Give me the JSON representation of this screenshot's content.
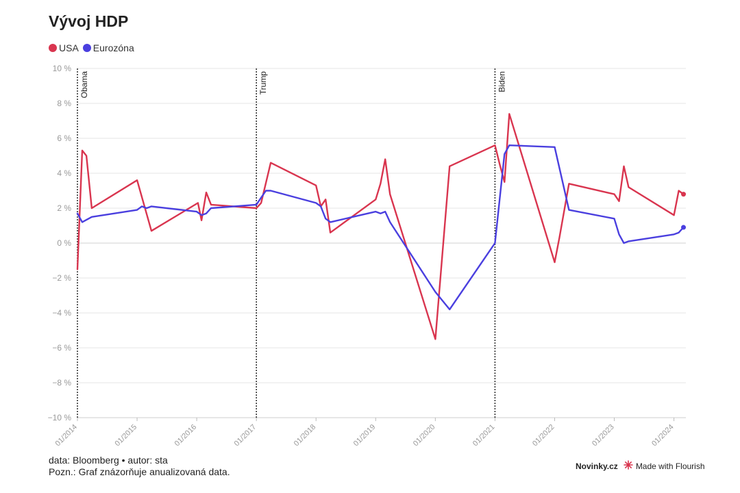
{
  "header": {
    "title": "Vývoj HDP"
  },
  "legend": [
    {
      "label": "USA",
      "color": "#d9354f"
    },
    {
      "label": "Eurozóna",
      "color": "#4a3fdf"
    }
  ],
  "footer": {
    "source_line": "data: Bloomberg • autor: sta",
    "note_line": "Pozn.: Graf znázorňuje anualizovaná data."
  },
  "brand": {
    "publisher": "Novinky.cz",
    "made_with": "Made with Flourish"
  },
  "chart_data": {
    "type": "line",
    "title": "Vývoj HDP",
    "ylim": [
      -10,
      10
    ],
    "xlim": [
      2014.0,
      2024.2
    ],
    "y_ticks": [
      -10,
      -8,
      -6,
      -4,
      -2,
      0,
      2,
      4,
      6,
      8,
      10
    ],
    "y_tick_labels": [
      "−10 %",
      "−8 %",
      "−6 %",
      "−4 %",
      "−2 %",
      "0 %",
      "2 %",
      "4 %",
      "6 %",
      "8 %",
      "10 %"
    ],
    "x_ticks": [
      2014,
      2015,
      2016,
      2017,
      2018,
      2019,
      2020,
      2021,
      2022,
      2023,
      2024
    ],
    "x_tick_labels": [
      "01/2014",
      "01/2015",
      "01/2016",
      "01/2017",
      "01/2018",
      "01/2019",
      "01/2020",
      "01/2021",
      "01/2022",
      "01/2023",
      "01/2024"
    ],
    "grid": true,
    "legend_position": "top-left",
    "annotations": [
      {
        "x": 2014.0,
        "label": "Obama"
      },
      {
        "x": 2017.0,
        "label": "Trump"
      },
      {
        "x": 2021.0,
        "label": "Biden"
      }
    ],
    "series": [
      {
        "name": "USA",
        "color": "#d9354f",
        "x": [
          2014.0,
          2014.08,
          2014.15,
          2014.24,
          2015.0,
          2015.24,
          2016.02,
          2016.08,
          2016.16,
          2016.24,
          2017.0,
          2017.08,
          2017.24,
          2018.0,
          2018.08,
          2018.16,
          2018.24,
          2019.0,
          2019.08,
          2019.16,
          2019.24,
          2020.0,
          2020.24,
          2021.0,
          2021.08,
          2021.16,
          2021.24,
          2022.0,
          2022.08,
          2022.24,
          2023.0,
          2023.08,
          2023.16,
          2023.24,
          2024.0,
          2024.08,
          2024.16
        ],
        "y": [
          -1.5,
          5.3,
          5.0,
          2.0,
          3.6,
          0.7,
          2.3,
          1.3,
          2.9,
          2.2,
          2.0,
          2.3,
          4.6,
          3.3,
          2.1,
          2.5,
          0.6,
          2.5,
          3.4,
          4.8,
          2.8,
          -5.5,
          4.4,
          5.6,
          4.5,
          3.5,
          7.4,
          -1.1,
          0.3,
          3.4,
          2.8,
          2.4,
          4.4,
          3.2,
          1.6,
          3.0,
          2.8
        ]
      },
      {
        "name": "Eurozóna",
        "color": "#4a3fdf",
        "x": [
          2014.0,
          2014.08,
          2014.24,
          2015.0,
          2015.08,
          2015.16,
          2015.24,
          2016.0,
          2016.08,
          2016.16,
          2016.24,
          2017.0,
          2017.08,
          2017.16,
          2017.24,
          2018.0,
          2018.08,
          2018.16,
          2018.24,
          2019.0,
          2019.08,
          2019.16,
          2019.24,
          2020.0,
          2020.24,
          2021.0,
          2021.16,
          2021.24,
          2022.0,
          2022.24,
          2023.0,
          2023.08,
          2023.16,
          2023.24,
          2024.0,
          2024.08,
          2024.16
        ],
        "y": [
          1.7,
          1.2,
          1.5,
          1.9,
          2.1,
          2.0,
          2.1,
          1.8,
          1.6,
          1.7,
          2.0,
          2.2,
          2.6,
          3.0,
          3.0,
          2.3,
          2.1,
          1.4,
          1.2,
          1.8,
          1.7,
          1.8,
          1.2,
          -2.8,
          -3.8,
          0.0,
          5.1,
          5.6,
          5.5,
          1.9,
          1.4,
          0.5,
          0.0,
          0.1,
          0.5,
          0.6,
          0.9
        ]
      }
    ]
  }
}
